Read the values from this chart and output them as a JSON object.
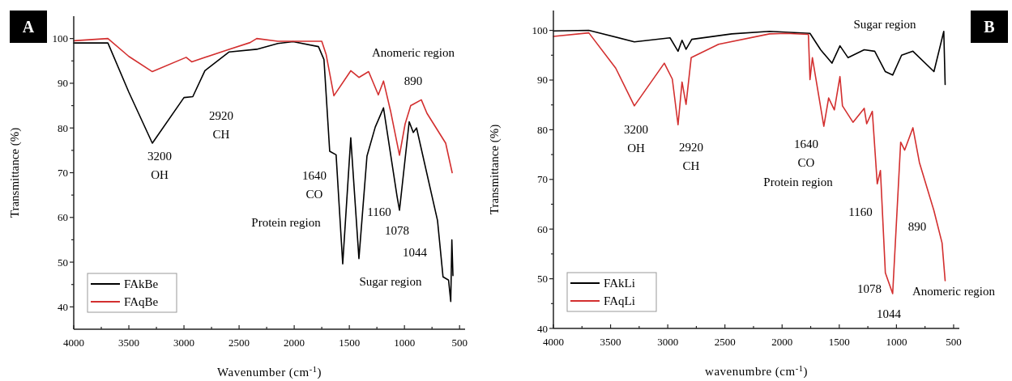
{
  "chart_data": [
    {
      "type": "line",
      "xlabel": "Wavenumber (cm$^{-1}$)",
      "ylabel": "Transmittance (%)",
      "xlim": [
        4000,
        450
      ],
      "ylim": [
        35,
        105
      ],
      "xticks": [
        4000,
        {
          "value": 3750,
          "label": null
        },
        3500,
        {
          "value": 3250,
          "label": null
        },
        3000,
        {
          "value": 2750,
          "label": null
        },
        2500,
        {
          "value": 2250,
          "label": null
        },
        2000,
        {
          "value": 1750,
          "label": null
        },
        1500,
        {
          "value": 1250,
          "label": null
        },
        1000,
        {
          "value": 750,
          "label": null
        },
        500
      ],
      "yticks": [
        40,
        {
          "value": 45,
          "label": null
        },
        50,
        {
          "value": 55,
          "label": null
        },
        60,
        {
          "value": 65,
          "label": null
        },
        70,
        {
          "value": 75,
          "label": null
        },
        80,
        {
          "value": 85,
          "label": null
        },
        90,
        {
          "value": 95,
          "label": null
        },
        100
      ],
      "legend": "bottom left",
      "grid": false,
      "series": [
        {
          "name": "FAkBe",
          "color": "#000000",
          "x": [
            4000,
            3690,
            3500,
            3287,
            3000,
            2920,
            2810,
            2590,
            2340,
            2148,
            2010,
            1780,
            1730,
            1678,
            1620,
            1560,
            1487,
            1413,
            1340,
            1265,
            1190,
            1067,
            1045,
            957,
            920,
            890,
            700,
            650,
            600,
            580,
            570,
            560
          ],
          "values": [
            99,
            99,
            88,
            76.6,
            86.8,
            87,
            92.8,
            97,
            97.6,
            98.9,
            99.3,
            98.2,
            95.3,
            74.8,
            74,
            49.6,
            77.8,
            50.8,
            73.7,
            80.2,
            84.5,
            64.7,
            61.6,
            81.4,
            79,
            80,
            59.3,
            46.7,
            46,
            41.2,
            55,
            47
          ]
        },
        {
          "name": "FAqBe",
          "color": "#d32f2f",
          "x": [
            4000,
            3690,
            3500,
            3287,
            2980,
            2930,
            2590,
            2400,
            2340,
            2148,
            1975,
            1750,
            1710,
            1640,
            1487,
            1413,
            1325,
            1237,
            1190,
            1126,
            1045,
            994,
            943,
            847,
            796,
            626,
            567
          ],
          "values": [
            99.5,
            100,
            96,
            92.6,
            95.8,
            94.8,
            97.6,
            99.1,
            100,
            99.4,
            99.4,
            99.4,
            96.4,
            87.2,
            92.8,
            91.3,
            92.6,
            87.4,
            90.5,
            83.8,
            73.9,
            80.9,
            85,
            86.3,
            83.3,
            76.6,
            70
          ]
        }
      ],
      "annotations": [
        "A",
        "3200\nOH",
        "2920\nCH",
        "Anomeric region",
        "890",
        "1640\nCO",
        "Protein region",
        "1160",
        "1078",
        "1044",
        "Sugar region"
      ]
    },
    {
      "type": "line",
      "xlabel": "wavenumbre (cm$^{-1}$)",
      "ylabel": "Transmittance (%)",
      "xlim": [
        4000,
        450
      ],
      "ylim": [
        40,
        104
      ],
      "xticks": [
        4000,
        {
          "value": 3750,
          "label": null
        },
        3500,
        {
          "value": 3250,
          "label": null
        },
        3000,
        {
          "value": 2750,
          "label": null
        },
        2500,
        {
          "value": 2250,
          "label": null
        },
        2000,
        {
          "value": 1750,
          "label": null
        },
        1500,
        {
          "value": 1250,
          "label": null
        },
        1000,
        {
          "value": 750,
          "label": null
        },
        500
      ],
      "yticks": [
        40,
        {
          "value": 45,
          "label": null
        },
        50,
        {
          "value": 55,
          "label": null
        },
        60,
        {
          "value": 65,
          "label": null
        },
        70,
        {
          "value": 75,
          "label": null
        },
        80,
        {
          "value": 85,
          "label": null
        },
        90,
        {
          "value": 95,
          "label": null
        },
        100
      ],
      "legend": "bottom left",
      "grid": false,
      "series": [
        {
          "name": "FAkLi",
          "color": "#000000",
          "x": [
            4000,
            3690,
            3292,
            2980,
            2910,
            2875,
            2840,
            2790,
            2440,
            2110,
            1756,
            1663,
            1564,
            1494,
            1423,
            1282,
            1190,
            1097,
            1033,
            955,
            856,
            672,
            586,
            574
          ],
          "values": [
            99.9,
            100,
            97.7,
            98.5,
            95.8,
            98,
            96.2,
            98.2,
            99.3,
            99.8,
            99.4,
            96.1,
            93.4,
            96.9,
            94.5,
            96.1,
            95.8,
            91.7,
            91,
            95,
            95.8,
            91.7,
            99.8,
            89.1
          ]
        },
        {
          "name": "FAqLi",
          "color": "#d32f2f",
          "x": [
            4000,
            3690,
            3455,
            3292,
            3030,
            2960,
            2910,
            2875,
            2840,
            2795,
            2556,
            2110,
            1968,
            1770,
            1756,
            1735,
            1635,
            1593,
            1543,
            1494,
            1472,
            1380,
            1282,
            1260,
            1211,
            1168,
            1140,
            1097,
            1033,
            963,
            928,
            856,
            799,
            672,
            601,
            574
          ],
          "values": [
            98.8,
            99.5,
            92.4,
            84.8,
            93.4,
            90.2,
            81,
            89.6,
            85.1,
            94.5,
            97.2,
            99.3,
            99.4,
            99.2,
            90.1,
            94.5,
            80.7,
            86.4,
            84,
            90.7,
            84.8,
            81.5,
            84.3,
            81.2,
            83.7,
            69.1,
            71.8,
            51.2,
            47,
            77.5,
            75.9,
            80.4,
            73.4,
            63.7,
            57.2,
            49.6
          ]
        }
      ],
      "annotations": [
        "B",
        "3200\nOH",
        "2920\nCH",
        "Sugar region",
        "1640\nCO",
        "Protein region",
        "1160",
        "890",
        "1078",
        "Anomeric region",
        "1044"
      ]
    }
  ]
}
